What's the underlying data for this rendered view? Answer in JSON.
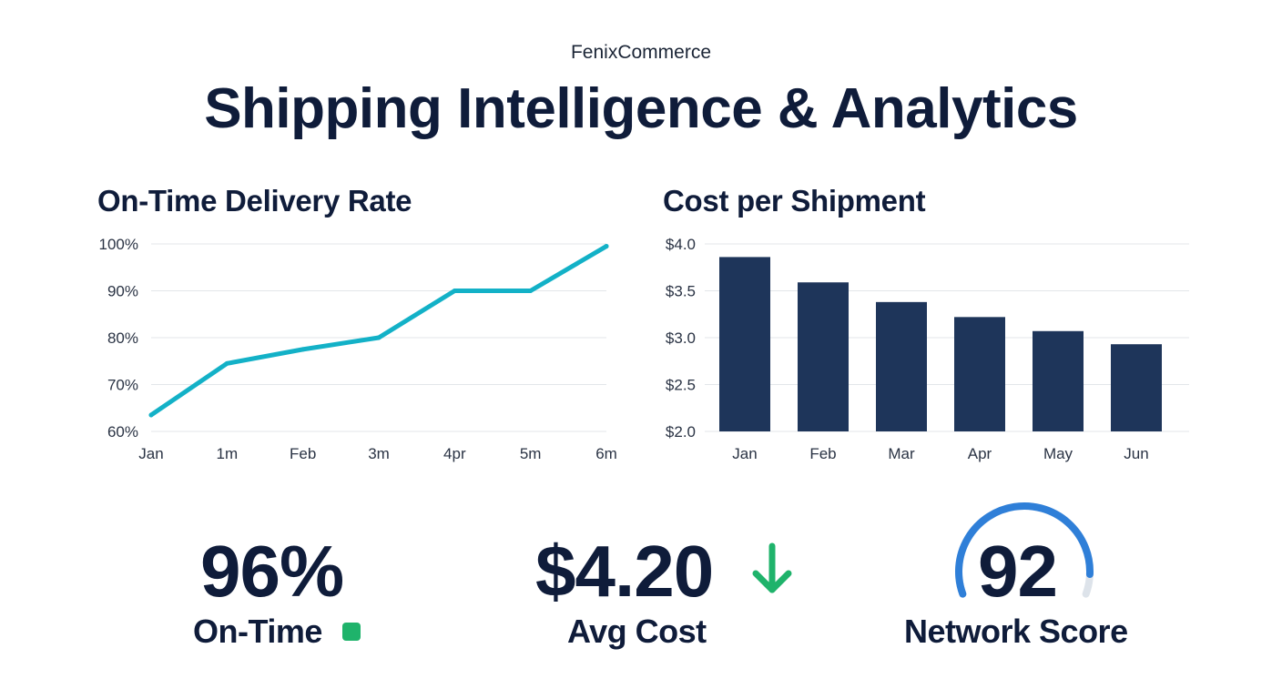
{
  "header": {
    "brand": "FenixCommerce",
    "title": "Shipping Intelligence & Analytics"
  },
  "colors": {
    "navy": "#0f1c3a",
    "line": "#13b1c7",
    "bar": "#1e355a",
    "grid": "#e3e6ea",
    "positive": "#1fb36b",
    "gauge": "#2f7fd8",
    "gauge_track": "#dde3ea"
  },
  "chart_data": [
    {
      "type": "line",
      "title": "On-Time Delivery Rate",
      "x": [
        "Jan",
        "1m",
        "Feb",
        "3m",
        "4pr",
        "5m",
        "6m"
      ],
      "values": [
        63.5,
        74.5,
        77.5,
        80,
        90,
        90,
        99.5
      ],
      "ylim": [
        60,
        100
      ],
      "yticks": [
        "60%",
        "70%",
        "80%",
        "90%",
        "100%"
      ],
      "ytick_values": [
        60,
        70,
        80,
        90,
        100
      ],
      "grid": true
    },
    {
      "type": "bar",
      "title": "Cost per Shipment",
      "categories": [
        "Jan",
        "Feb",
        "Mar",
        "Apr",
        "May",
        "Jun"
      ],
      "values": [
        3.86,
        3.59,
        3.38,
        3.22,
        3.07,
        2.93
      ],
      "ylim": [
        2.0,
        4.0
      ],
      "yticks": [
        "$2.0",
        "$2.5",
        "$3.0",
        "$3.5",
        "$4.0"
      ],
      "ytick_values": [
        2.0,
        2.5,
        3.0,
        3.5,
        4.0
      ],
      "grid": true
    }
  ],
  "kpis": [
    {
      "value": "96%",
      "label": "On-Time",
      "indicator": "green-square-icon"
    },
    {
      "value": "$4.20",
      "label": "Avg Cost",
      "indicator": "arrow-down-icon"
    },
    {
      "value": "92",
      "label": "Network Score",
      "indicator": "gauge-arc-icon",
      "score_fraction": 0.92
    }
  ]
}
